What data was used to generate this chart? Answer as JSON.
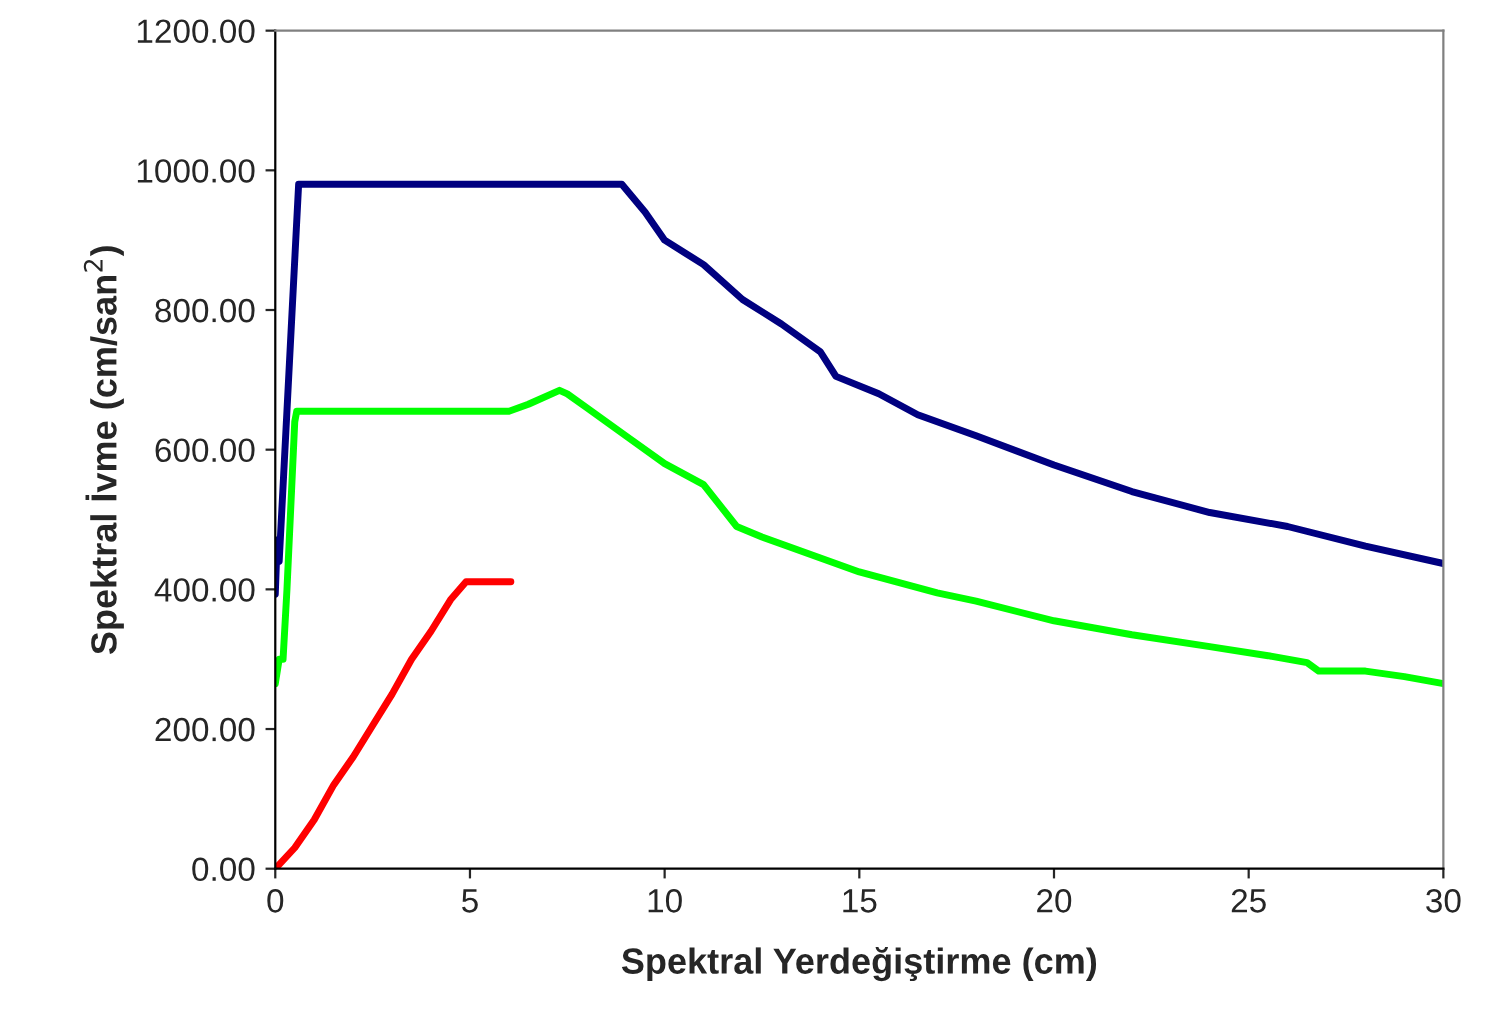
{
  "chart_data": {
    "type": "line",
    "xlabel": "Spektral Yerdeğiştirme (cm)",
    "ylabel": "Spektral İvme (cm/san$^{2}$)",
    "xlim": [
      0,
      30
    ],
    "xticks": [
      0,
      5,
      10,
      15,
      20,
      25,
      30
    ],
    "ylim": [
      0,
      1200
    ],
    "yticks": [
      {
        "value": 0,
        "label": "0.00"
      },
      {
        "value": 200,
        "label": "200.00"
      },
      {
        "value": 400,
        "label": "400.00"
      },
      {
        "value": 600,
        "label": "600.00"
      },
      {
        "value": 800,
        "label": "800.00"
      },
      {
        "value": 1000,
        "label": "1000.00"
      },
      {
        "value": 1200,
        "label": "1200.00"
      }
    ],
    "grid": false,
    "legend": false,
    "marker": "none",
    "line_style": "solid",
    "series": [
      {
        "color": "#000080",
        "x": [
          0,
          0.05,
          0.1,
          0.6,
          8.9,
          9.5,
          10,
          11,
          12,
          13,
          14,
          14.4,
          15.5,
          16.5,
          18,
          20,
          22,
          24,
          26,
          28,
          30
        ],
        "values": [
          393,
          471,
          440,
          980,
          980,
          940,
          900,
          865,
          815,
          780,
          740,
          705,
          680,
          650,
          620,
          578,
          540,
          510,
          490,
          462,
          437
        ]
      },
      {
        "color": "#00ff00",
        "x": [
          0,
          0.1,
          0.2,
          0.3,
          0.5,
          0.55,
          6.0,
          6.5,
          7.3,
          7.5,
          8,
          9,
          10,
          11,
          11.85,
          12.5,
          13,
          14,
          15,
          16,
          17,
          18,
          20,
          22,
          24,
          25.5,
          26.5,
          26.8,
          28,
          29,
          30
        ],
        "values": [
          265,
          300,
          300,
          400,
          640,
          655,
          655,
          665,
          685,
          680,
          660,
          620,
          580,
          550,
          490,
          475,
          465,
          445,
          425,
          410,
          395,
          383,
          355,
          335,
          318,
          305,
          295,
          283,
          283,
          275,
          265
        ]
      },
      {
        "color": "#ff0000",
        "x": [
          0,
          0.5,
          1,
          1.5,
          2,
          2.5,
          3,
          3.5,
          4,
          4.5,
          4.9,
          6.05
        ],
        "values": [
          0,
          30,
          70,
          120,
          160,
          205,
          250,
          300,
          340,
          385,
          411,
          411
        ]
      }
    ]
  }
}
